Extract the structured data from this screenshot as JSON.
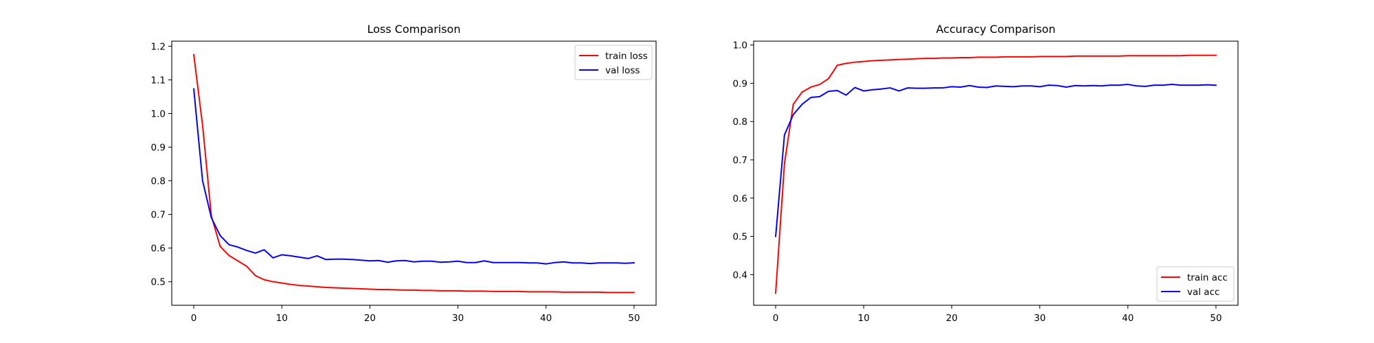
{
  "chart_data": [
    {
      "type": "line",
      "title": "Loss Comparison",
      "xlabel": "",
      "ylabel": "",
      "xlim": [
        -2.5,
        52.5
      ],
      "ylim": [
        0.43,
        1.215
      ],
      "xticks": [
        0,
        10,
        20,
        30,
        40,
        50
      ],
      "yticks": [
        0.5,
        0.6,
        0.7,
        0.8,
        0.9,
        1.0,
        1.1,
        1.2
      ],
      "grid": false,
      "legend_position": "upper right",
      "series": [
        {
          "name": "train loss",
          "color": "#ff0000",
          "x": [
            0,
            1,
            2,
            3,
            4,
            5,
            6,
            7,
            8,
            9,
            10,
            11,
            12,
            13,
            14,
            15,
            16,
            17,
            18,
            19,
            20,
            21,
            22,
            23,
            24,
            25,
            26,
            27,
            28,
            29,
            30,
            31,
            32,
            33,
            34,
            35,
            36,
            37,
            38,
            39,
            40,
            41,
            42,
            43,
            44,
            45,
            46,
            47,
            48,
            49,
            50
          ],
          "values": [
            1.175,
            0.965,
            0.695,
            0.605,
            0.578,
            0.562,
            0.546,
            0.518,
            0.506,
            0.5,
            0.496,
            0.492,
            0.489,
            0.487,
            0.485,
            0.483,
            0.482,
            0.481,
            0.48,
            0.479,
            0.478,
            0.477,
            0.477,
            0.476,
            0.475,
            0.475,
            0.474,
            0.474,
            0.473,
            0.473,
            0.473,
            0.472,
            0.472,
            0.472,
            0.471,
            0.471,
            0.471,
            0.471,
            0.47,
            0.47,
            0.47,
            0.47,
            0.469,
            0.469,
            0.469,
            0.469,
            0.469,
            0.468,
            0.468,
            0.468,
            0.468
          ]
        },
        {
          "name": "val loss",
          "color": "#0000ff",
          "x": [
            0,
            1,
            2,
            3,
            4,
            5,
            6,
            7,
            8,
            9,
            10,
            11,
            12,
            13,
            14,
            15,
            16,
            17,
            18,
            19,
            20,
            21,
            22,
            23,
            24,
            25,
            26,
            27,
            28,
            29,
            30,
            31,
            32,
            33,
            34,
            35,
            36,
            37,
            38,
            39,
            40,
            41,
            42,
            43,
            44,
            45,
            46,
            47,
            48,
            49,
            50
          ],
          "values": [
            1.073,
            0.8,
            0.69,
            0.637,
            0.61,
            0.603,
            0.593,
            0.585,
            0.595,
            0.571,
            0.58,
            0.577,
            0.573,
            0.569,
            0.577,
            0.566,
            0.567,
            0.567,
            0.566,
            0.564,
            0.562,
            0.563,
            0.558,
            0.562,
            0.563,
            0.559,
            0.561,
            0.561,
            0.558,
            0.559,
            0.561,
            0.557,
            0.557,
            0.562,
            0.557,
            0.557,
            0.557,
            0.557,
            0.556,
            0.556,
            0.553,
            0.557,
            0.559,
            0.556,
            0.556,
            0.554,
            0.556,
            0.556,
            0.556,
            0.555,
            0.556
          ]
        }
      ]
    },
    {
      "type": "line",
      "title": "Accuracy Comparison",
      "xlabel": "",
      "ylabel": "",
      "xlim": [
        -2.5,
        52.5
      ],
      "ylim": [
        0.32,
        1.01
      ],
      "xticks": [
        0,
        10,
        20,
        30,
        40,
        50
      ],
      "yticks": [
        0.4,
        0.5,
        0.6,
        0.7,
        0.8,
        0.9,
        1.0
      ],
      "grid": false,
      "legend_position": "lower right",
      "series": [
        {
          "name": "train acc",
          "color": "#ff0000",
          "x": [
            0,
            1,
            2,
            3,
            4,
            5,
            6,
            7,
            8,
            9,
            10,
            11,
            12,
            13,
            14,
            15,
            16,
            17,
            18,
            19,
            20,
            21,
            22,
            23,
            24,
            25,
            26,
            27,
            28,
            29,
            30,
            31,
            32,
            33,
            34,
            35,
            36,
            37,
            38,
            39,
            40,
            41,
            42,
            43,
            44,
            45,
            46,
            47,
            48,
            49,
            50
          ],
          "values": [
            0.352,
            0.69,
            0.845,
            0.877,
            0.89,
            0.897,
            0.912,
            0.947,
            0.952,
            0.955,
            0.957,
            0.959,
            0.96,
            0.961,
            0.962,
            0.963,
            0.964,
            0.965,
            0.965,
            0.966,
            0.966,
            0.967,
            0.967,
            0.968,
            0.968,
            0.968,
            0.969,
            0.969,
            0.969,
            0.969,
            0.97,
            0.97,
            0.97,
            0.97,
            0.971,
            0.971,
            0.971,
            0.971,
            0.971,
            0.971,
            0.972,
            0.972,
            0.972,
            0.972,
            0.972,
            0.972,
            0.972,
            0.973,
            0.973,
            0.973,
            0.973
          ]
        },
        {
          "name": "val acc",
          "color": "#0000ff",
          "x": [
            0,
            1,
            2,
            3,
            4,
            5,
            6,
            7,
            8,
            9,
            10,
            11,
            12,
            13,
            14,
            15,
            16,
            17,
            18,
            19,
            20,
            21,
            22,
            23,
            24,
            25,
            26,
            27,
            28,
            29,
            30,
            31,
            32,
            33,
            34,
            35,
            36,
            37,
            38,
            39,
            40,
            41,
            42,
            43,
            44,
            45,
            46,
            47,
            48,
            49,
            50
          ],
          "values": [
            0.5,
            0.765,
            0.818,
            0.845,
            0.863,
            0.865,
            0.879,
            0.881,
            0.869,
            0.889,
            0.88,
            0.883,
            0.885,
            0.888,
            0.88,
            0.888,
            0.887,
            0.887,
            0.888,
            0.888,
            0.891,
            0.89,
            0.894,
            0.89,
            0.889,
            0.893,
            0.892,
            0.891,
            0.893,
            0.893,
            0.891,
            0.895,
            0.894,
            0.89,
            0.894,
            0.893,
            0.894,
            0.893,
            0.895,
            0.895,
            0.897,
            0.893,
            0.892,
            0.895,
            0.895,
            0.897,
            0.895,
            0.895,
            0.895,
            0.896,
            0.895
          ]
        }
      ]
    }
  ]
}
